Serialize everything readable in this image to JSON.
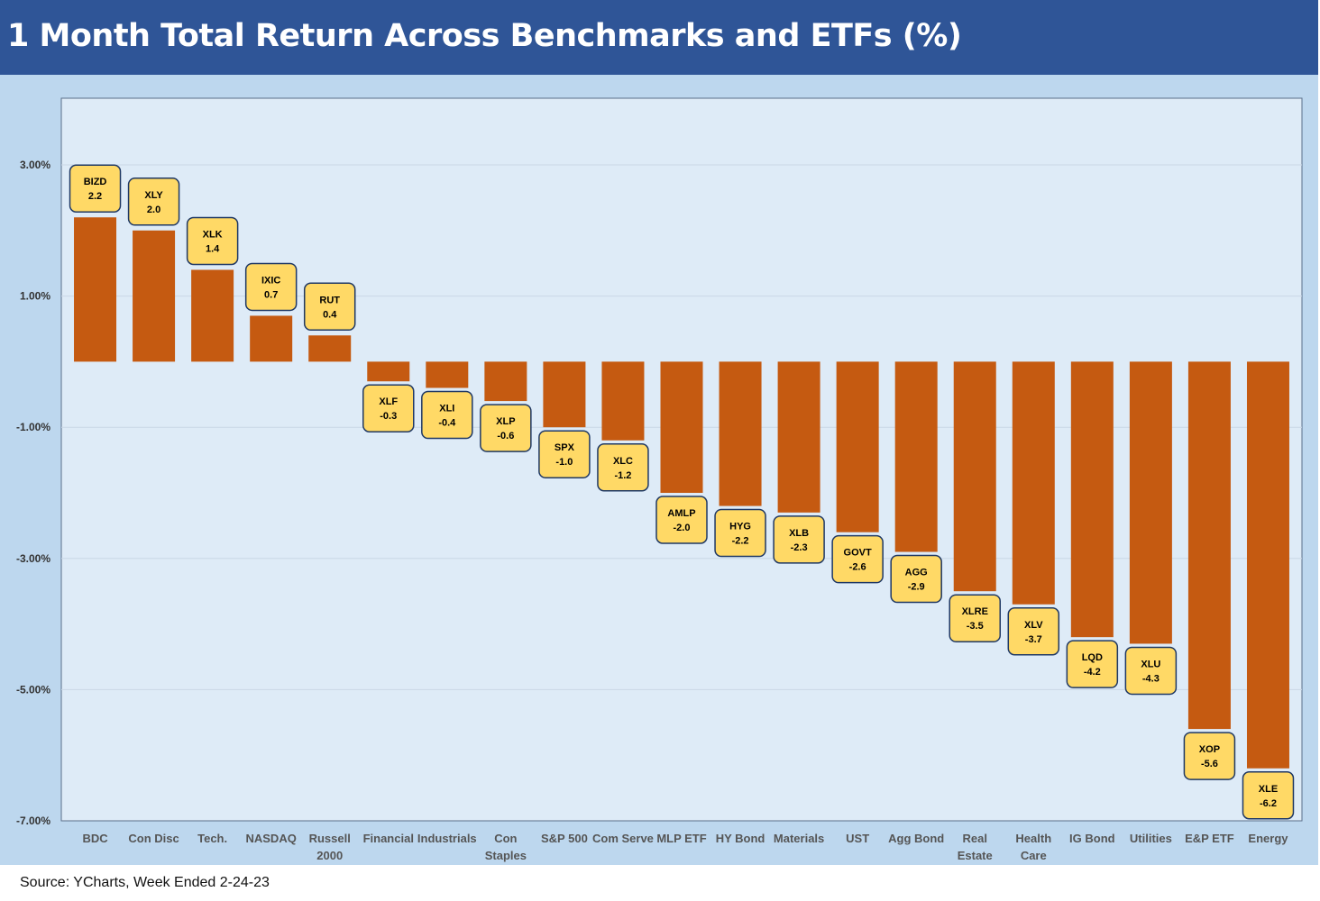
{
  "title": "1 Month Total Return Across Benchmarks and ETFs (%)",
  "source": "Source: YCharts, Week Ended 2-24-23",
  "colors": {
    "header_bg": "#2f5597",
    "panel_bg": "#bdd7ee",
    "plot_bg": "#deebf7",
    "bar": "#c55a11",
    "label_bg": "#ffd966",
    "label_border": "#1f3864"
  },
  "chart_data": {
    "type": "bar",
    "title": "1 Month Total Return Across Benchmarks and ETFs (%)",
    "categories": [
      [
        "BDC"
      ],
      [
        "Con Disc"
      ],
      [
        "Tech."
      ],
      [
        "NASDAQ"
      ],
      [
        "Russell",
        "2000"
      ],
      [
        "Financial"
      ],
      [
        "Industrials"
      ],
      [
        "Con",
        "Staples"
      ],
      [
        "S&P 500"
      ],
      [
        "Com Serve"
      ],
      [
        "MLP ETF"
      ],
      [
        "HY Bond"
      ],
      [
        "Materials"
      ],
      [
        "UST"
      ],
      [
        "Agg Bond"
      ],
      [
        "Real",
        "Estate"
      ],
      [
        "Health",
        "Care"
      ],
      [
        "IG Bond"
      ],
      [
        "Utilities"
      ],
      [
        "E&P ETF"
      ],
      [
        "Energy"
      ]
    ],
    "tickers": [
      "BIZD",
      "XLY",
      "XLK",
      "IXIC",
      "RUT",
      "XLF",
      "XLI",
      "XLP",
      "SPX",
      "XLC",
      "AMLP",
      "HYG",
      "XLB",
      "GOVT",
      "AGG",
      "XLRE",
      "XLV",
      "LQD",
      "XLU",
      "XOP",
      "XLE"
    ],
    "values": [
      2.2,
      2.0,
      1.4,
      0.7,
      0.4,
      -0.3,
      -0.4,
      -0.6,
      -1.0,
      -1.2,
      -2.0,
      -2.2,
      -2.3,
      -2.6,
      -2.9,
      -3.5,
      -3.7,
      -4.2,
      -4.3,
      -5.6,
      -6.2
    ],
    "value_labels": [
      "2.2",
      "2.0",
      "1.4",
      "0.7",
      "0.4",
      "-0.3",
      "-0.4",
      "-0.6",
      "-1.0",
      "-1.2",
      "-2.0",
      "-2.2",
      "-2.3",
      "-2.6",
      "-2.9",
      "-3.5",
      "-3.7",
      "-4.2",
      "-4.3",
      "-5.6",
      "-6.2"
    ],
    "ylim": [
      -7,
      4
    ],
    "y_ticks": [
      {
        "value": 3,
        "label": "3.00%"
      },
      {
        "value": 1,
        "label": "1.00%"
      },
      {
        "value": -1,
        "label": "-1.00%"
      },
      {
        "value": -3,
        "label": "-3.00%"
      },
      {
        "value": -5,
        "label": "-5.00%"
      },
      {
        "value": -7,
        "label": "-7.00%"
      }
    ],
    "grid": true,
    "legend": "none"
  }
}
